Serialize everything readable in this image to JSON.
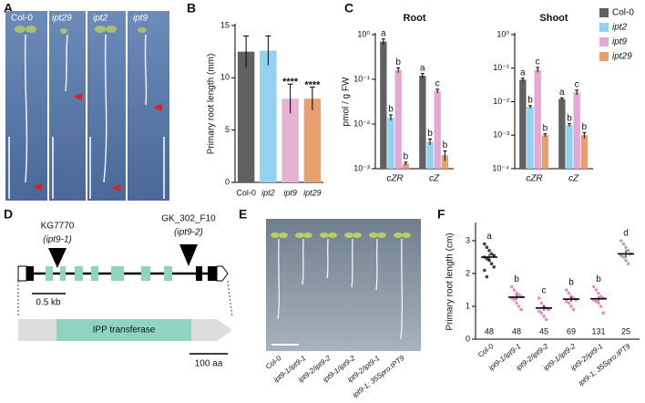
{
  "panel_labels": [
    "A",
    "B",
    "C",
    "D",
    "E",
    "F"
  ],
  "photo_a": {
    "labels": [
      "Col-0",
      "ipt29",
      "ipt2",
      "ipt9"
    ]
  },
  "chart_data": [
    {
      "type": "bar",
      "ylabel": "Primary root length (mm)",
      "categories": [
        "Col-0",
        "ipt2",
        "ipt9",
        "ipt29"
      ],
      "values": [
        12.5,
        12.6,
        8.0,
        8.0
      ],
      "errors": [
        1.5,
        1.4,
        1.4,
        1.1
      ],
      "colors": [
        "#616161",
        "#92d2f0",
        "#e4b2d2",
        "#e8a070"
      ],
      "annotations": [
        null,
        null,
        "****",
        "****"
      ],
      "ylim": [
        0,
        15
      ],
      "yticks": [
        0,
        5,
        10,
        15
      ]
    },
    {
      "type": "grouped_bar",
      "log_scale": true,
      "categories": [
        "cZR",
        "cZ"
      ],
      "legend": "right",
      "series": [
        {
          "name": "Col-0",
          "color": "#616161"
        },
        {
          "name": "ipt2",
          "color": "#92d2f0"
        },
        {
          "name": "ipt9",
          "color": "#e4a8d4"
        },
        {
          "name": "ipt29",
          "color": "#e8a070"
        }
      ],
      "subplots": [
        {
          "title": "Root",
          "ylabel": "pmol / g FW",
          "ylim": [
            0.001,
            1
          ],
          "yticks": [
            {
              "value": 0.001,
              "label": "10⁻³"
            },
            {
              "value": 0.01,
              "label": "10⁻²"
            },
            {
              "value": 0.1,
              "label": "10⁻¹"
            },
            {
              "value": 1,
              "label": "10⁰"
            }
          ],
          "values": [
            [
              0.7,
              0.12
            ],
            [
              0.014,
              0.004
            ],
            [
              0.16,
              0.055
            ],
            [
              0.0013,
              0.002
            ]
          ],
          "errors": [
            [
              0.1,
              0.015
            ],
            [
              0.002,
              0.0006
            ],
            [
              0.02,
              0.005
            ],
            [
              0.0001,
              0.0005
            ]
          ],
          "annotations": [
            [
              "a",
              "a"
            ],
            [
              "b",
              "b"
            ],
            [
              "b",
              "c"
            ],
            [
              "b",
              "b"
            ]
          ]
        },
        {
          "title": "Shoot",
          "ylim": [
            0.0001,
            1
          ],
          "yticks": [
            {
              "value": 0.0001,
              "label": "10⁻⁴"
            },
            {
              "value": 0.001,
              "label": "10⁻³"
            },
            {
              "value": 0.01,
              "label": "10⁻²"
            },
            {
              "value": 0.1,
              "label": "10⁻¹"
            },
            {
              "value": 1,
              "label": "10⁰"
            }
          ],
          "values": [
            [
              0.045,
              0.012
            ],
            [
              0.007,
              0.002
            ],
            [
              0.09,
              0.019
            ],
            [
              0.001,
              0.001
            ]
          ],
          "errors": [
            [
              0.005,
              0.001
            ],
            [
              0.0006,
              0.0002
            ],
            [
              0.015,
              0.003
            ],
            [
              0.0001,
              0.0002
            ]
          ],
          "annotations": [
            [
              "a",
              "a"
            ],
            [
              "b",
              "b"
            ],
            [
              "c",
              "c"
            ],
            [
              "b",
              "b"
            ]
          ]
        }
      ]
    },
    {
      "type": "dot",
      "ylabel": "Primary root length (cm)",
      "categories": [
        "Col-0",
        "ipt9-1/ipt9-1",
        "ipt9-2/ipt9-2",
        "ipt9-1/ipt9-2",
        "ipt9-2/ipt9-1",
        "ipt9-1; 35Spro:IPT9"
      ],
      "colors": [
        "#111111",
        "#e070b8",
        "#e070b8",
        "#e070b8",
        "#e070b8",
        "#999999"
      ],
      "points": [
        [
          2.9,
          2.8,
          2.7,
          2.6,
          2.55,
          2.5,
          2.45,
          2.4,
          2.3,
          2.2,
          2.1,
          1.9
        ],
        [
          1.6,
          1.5,
          1.4,
          1.35,
          1.3,
          1.25,
          1.2,
          1.1,
          1.0,
          0.9
        ],
        [
          1.25,
          1.1,
          1.0,
          0.95,
          0.9,
          0.85,
          0.8,
          0.7,
          0.6
        ],
        [
          1.5,
          1.4,
          1.3,
          1.25,
          1.2,
          1.15,
          1.1,
          1.0,
          0.9
        ],
        [
          1.6,
          1.5,
          1.4,
          1.3,
          1.25,
          1.2,
          1.15,
          1.1,
          1.0,
          0.8
        ],
        [
          3.0,
          2.9,
          2.8,
          2.7,
          2.6,
          2.55,
          2.5,
          2.4,
          2.3
        ]
      ],
      "means": [
        2.5,
        1.28,
        0.95,
        1.22,
        1.23,
        2.6
      ],
      "errors": [
        0.1,
        0.08,
        0.08,
        0.08,
        0.07,
        0.12
      ],
      "annotations": [
        "a",
        "b",
        "c",
        "b",
        "b",
        "d"
      ],
      "n": [
        48,
        48,
        45,
        69,
        131,
        25
      ],
      "ylim": [
        0,
        3.5
      ],
      "yticks": [
        0,
        1,
        2,
        3
      ]
    }
  ],
  "diagram_d": {
    "insertion_1": "KG7770",
    "allele_1": "(ipt9-1)",
    "insertion_2": "GK_302_F10",
    "allele_2": "(ipt9-2)",
    "gene_scale": "0.5 kb",
    "domain": "IPP transferase",
    "protein_scale": "100 aa"
  },
  "photo_e": {
    "labels": [
      "Col-0",
      "ipt9-1/ipt9-1",
      "ipt9-2/ipt9-2",
      "ipt9-1/ipt9-2",
      "ipt9-2/ipt9-1",
      "ipt9-1; 35Spro:IPT9"
    ]
  }
}
